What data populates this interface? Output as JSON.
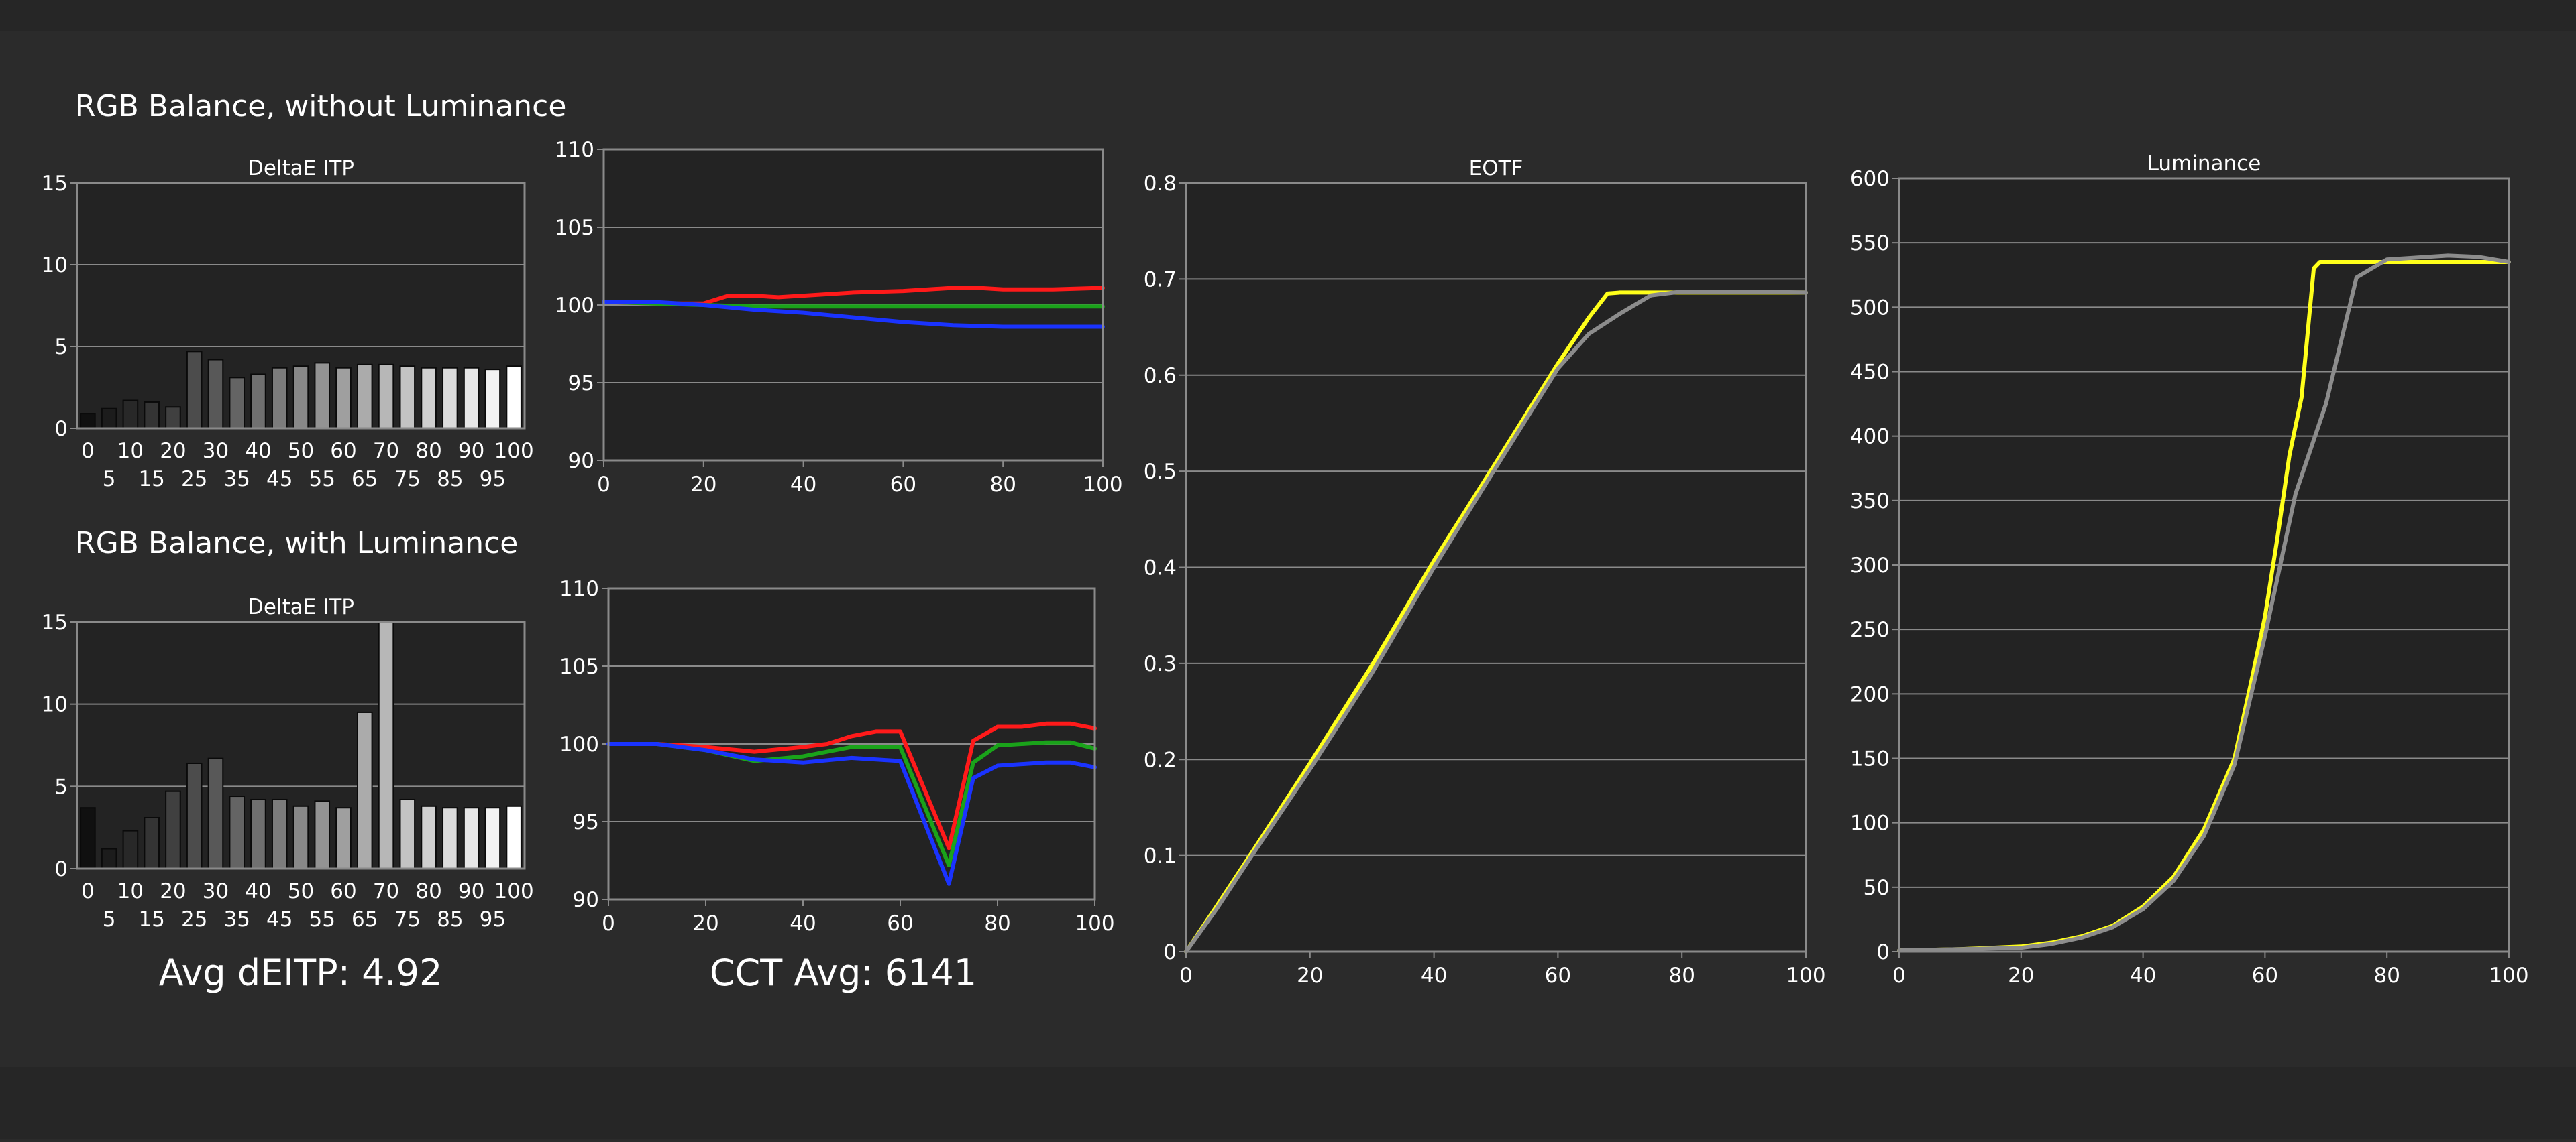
{
  "colors": {
    "background": "#2b2b2b",
    "plot_bg": "#232323",
    "grid": "#8a8a8a",
    "text": "#ffffff",
    "red": "#ff1a1a",
    "green": "#1aa31a",
    "blue": "#1a33ff",
    "yellow": "#ffff1a",
    "gray_curve": "#8c8c8c"
  },
  "headings": {
    "without": "RGB Balance, without Luminance",
    "with": "RGB Balance, with Luminance"
  },
  "summary": {
    "avg_deitp": "Avg dEITP: 4.92",
    "cct_avg": "CCT Avg: 6141"
  },
  "chart_data": [
    {
      "id": "deltae-without",
      "type": "bar",
      "title": "DeltaE ITP",
      "categories": [
        "0",
        "5",
        "10",
        "15",
        "20",
        "25",
        "30",
        "35",
        "40",
        "45",
        "50",
        "55",
        "60",
        "65",
        "70",
        "75",
        "80",
        "85",
        "90",
        "95",
        "100"
      ],
      "values": [
        0.9,
        1.2,
        1.7,
        1.6,
        1.3,
        4.7,
        4.2,
        3.1,
        3.3,
        3.7,
        3.8,
        4.0,
        3.7,
        3.9,
        3.9,
        3.8,
        3.7,
        3.7,
        3.7,
        3.6,
        3.8
      ],
      "ylim": [
        0,
        15
      ],
      "yticks": [
        "0",
        "5",
        "10",
        "15"
      ],
      "grid": true
    },
    {
      "id": "rgb-without",
      "type": "line",
      "title": "",
      "xlim": [
        0,
        100
      ],
      "ylim": [
        90,
        110
      ],
      "xticks": [
        "0",
        "20",
        "40",
        "60",
        "80",
        "100"
      ],
      "yticks": [
        "90",
        "95",
        "100",
        "105",
        "110"
      ],
      "grid": true,
      "series": [
        {
          "color": "red",
          "points": [
            [
              0,
              100.2
            ],
            [
              10,
              100.1
            ],
            [
              20,
              100.1
            ],
            [
              25,
              100.6
            ],
            [
              30,
              100.6
            ],
            [
              35,
              100.5
            ],
            [
              40,
              100.6
            ],
            [
              50,
              100.8
            ],
            [
              60,
              100.9
            ],
            [
              70,
              101.1
            ],
            [
              75,
              101.1
            ],
            [
              80,
              101.0
            ],
            [
              90,
              101.0
            ],
            [
              100,
              101.1
            ]
          ]
        },
        {
          "color": "green",
          "points": [
            [
              0,
              100.2
            ],
            [
              10,
              100.1
            ],
            [
              20,
              100.0
            ],
            [
              30,
              99.9
            ],
            [
              40,
              99.9
            ],
            [
              50,
              99.9
            ],
            [
              60,
              99.9
            ],
            [
              70,
              99.9
            ],
            [
              80,
              99.9
            ],
            [
              90,
              99.9
            ],
            [
              100,
              99.9
            ]
          ]
        },
        {
          "color": "blue",
          "points": [
            [
              0,
              100.2
            ],
            [
              10,
              100.2
            ],
            [
              20,
              100.0
            ],
            [
              30,
              99.7
            ],
            [
              40,
              99.5
            ],
            [
              50,
              99.2
            ],
            [
              60,
              98.9
            ],
            [
              70,
              98.7
            ],
            [
              80,
              98.6
            ],
            [
              90,
              98.6
            ],
            [
              100,
              98.6
            ]
          ]
        }
      ]
    },
    {
      "id": "deltae-with",
      "type": "bar",
      "title": "DeltaE ITP",
      "categories": [
        "0",
        "5",
        "10",
        "15",
        "20",
        "25",
        "30",
        "35",
        "40",
        "45",
        "50",
        "55",
        "60",
        "65",
        "70",
        "75",
        "80",
        "85",
        "90",
        "95",
        "100"
      ],
      "values": [
        3.7,
        1.2,
        2.3,
        3.1,
        4.7,
        6.4,
        6.7,
        4.4,
        4.2,
        4.2,
        3.8,
        4.1,
        3.7,
        9.5,
        15.0,
        4.2,
        3.8,
        3.7,
        3.7,
        3.7,
        3.8
      ],
      "ylim": [
        0,
        15
      ],
      "yticks": [
        "0",
        "5",
        "10",
        "15"
      ],
      "grid": true
    },
    {
      "id": "rgb-with",
      "type": "line",
      "title": "",
      "xlim": [
        0,
        100
      ],
      "ylim": [
        90,
        110
      ],
      "xticks": [
        "0",
        "20",
        "40",
        "60",
        "80",
        "100"
      ],
      "yticks": [
        "90",
        "95",
        "100",
        "105",
        "110"
      ],
      "grid": true,
      "series": [
        {
          "color": "red",
          "points": [
            [
              0,
              100.0
            ],
            [
              10,
              100.0
            ],
            [
              20,
              99.8
            ],
            [
              30,
              99.5
            ],
            [
              40,
              99.8
            ],
            [
              45,
              100.0
            ],
            [
              50,
              100.5
            ],
            [
              55,
              100.8
            ],
            [
              60,
              100.8
            ],
            [
              70,
              93.3
            ],
            [
              75,
              100.2
            ],
            [
              80,
              101.1
            ],
            [
              85,
              101.1
            ],
            [
              90,
              101.3
            ],
            [
              95,
              101.3
            ],
            [
              100,
              101.0
            ]
          ]
        },
        {
          "color": "green",
          "points": [
            [
              0,
              100.0
            ],
            [
              10,
              100.0
            ],
            [
              20,
              99.6
            ],
            [
              30,
              98.9
            ],
            [
              40,
              99.2
            ],
            [
              50,
              99.8
            ],
            [
              60,
              99.8
            ],
            [
              70,
              92.2
            ],
            [
              75,
              98.8
            ],
            [
              80,
              99.9
            ],
            [
              90,
              100.1
            ],
            [
              95,
              100.1
            ],
            [
              100,
              99.7
            ]
          ]
        },
        {
          "color": "blue",
          "points": [
            [
              0,
              100.0
            ],
            [
              10,
              100.0
            ],
            [
              20,
              99.6
            ],
            [
              30,
              99.0
            ],
            [
              40,
              98.8
            ],
            [
              50,
              99.1
            ],
            [
              60,
              98.9
            ],
            [
              70,
              91.0
            ],
            [
              75,
              97.8
            ],
            [
              80,
              98.6
            ],
            [
              90,
              98.8
            ],
            [
              95,
              98.8
            ],
            [
              100,
              98.5
            ]
          ]
        }
      ]
    },
    {
      "id": "eotf",
      "type": "line",
      "title": "EOTF",
      "xlim": [
        0,
        100
      ],
      "ylim": [
        0,
        0.8
      ],
      "xticks": [
        "0",
        "20",
        "40",
        "60",
        "80",
        "100"
      ],
      "yticks": [
        "0",
        "0.1",
        "0.2",
        "0.3",
        "0.4",
        "0.5",
        "0.6",
        "0.7",
        "0.8"
      ],
      "grid": true,
      "series": [
        {
          "color": "yellow",
          "points": [
            [
              0,
              0
            ],
            [
              5,
              0.048
            ],
            [
              10,
              0.097
            ],
            [
              20,
              0.196
            ],
            [
              30,
              0.298
            ],
            [
              40,
              0.407
            ],
            [
              50,
              0.509
            ],
            [
              60,
              0.612
            ],
            [
              65,
              0.66
            ],
            [
              68,
              0.685
            ],
            [
              70,
              0.686
            ],
            [
              80,
              0.686
            ],
            [
              90,
              0.686
            ],
            [
              100,
              0.686
            ]
          ]
        },
        {
          "color": "gray_curve",
          "points": [
            [
              0,
              0
            ],
            [
              5,
              0.045
            ],
            [
              10,
              0.094
            ],
            [
              20,
              0.19
            ],
            [
              30,
              0.29
            ],
            [
              40,
              0.4
            ],
            [
              50,
              0.504
            ],
            [
              60,
              0.607
            ],
            [
              65,
              0.643
            ],
            [
              70,
              0.664
            ],
            [
              75,
              0.683
            ],
            [
              80,
              0.687
            ],
            [
              90,
              0.687
            ],
            [
              100,
              0.686
            ]
          ]
        }
      ]
    },
    {
      "id": "luminance",
      "type": "line",
      "title": "Luminance",
      "xlim": [
        0,
        100
      ],
      "ylim": [
        0,
        600
      ],
      "xticks": [
        "0",
        "20",
        "40",
        "60",
        "80",
        "100"
      ],
      "yticks": [
        "0",
        "50",
        "100",
        "150",
        "200",
        "250",
        "300",
        "350",
        "400",
        "450",
        "500",
        "550",
        "600"
      ],
      "grid": true,
      "series": [
        {
          "color": "yellow",
          "points": [
            [
              0,
              1
            ],
            [
              10,
              2
            ],
            [
              20,
              4
            ],
            [
              25,
              7
            ],
            [
              30,
              12
            ],
            [
              35,
              20
            ],
            [
              40,
              35
            ],
            [
              45,
              58
            ],
            [
              50,
              95
            ],
            [
              55,
              150
            ],
            [
              58,
              215
            ],
            [
              60,
              260
            ],
            [
              62,
              320
            ],
            [
              64,
              385
            ],
            [
              66,
              430
            ],
            [
              68,
              530
            ],
            [
              69,
              535
            ],
            [
              70,
              535
            ],
            [
              80,
              535
            ],
            [
              90,
              535
            ],
            [
              100,
              535
            ]
          ]
        },
        {
          "color": "gray_curve",
          "points": [
            [
              0,
              1
            ],
            [
              10,
              2
            ],
            [
              20,
              3
            ],
            [
              25,
              6
            ],
            [
              30,
              11
            ],
            [
              35,
              19
            ],
            [
              40,
              33
            ],
            [
              45,
              55
            ],
            [
              50,
              90
            ],
            [
              55,
              145
            ],
            [
              60,
              245
            ],
            [
              65,
              355
            ],
            [
              70,
              425
            ],
            [
              75,
              523
            ],
            [
              80,
              537
            ],
            [
              90,
              540
            ],
            [
              95,
              539
            ],
            [
              100,
              535
            ]
          ]
        }
      ]
    }
  ]
}
